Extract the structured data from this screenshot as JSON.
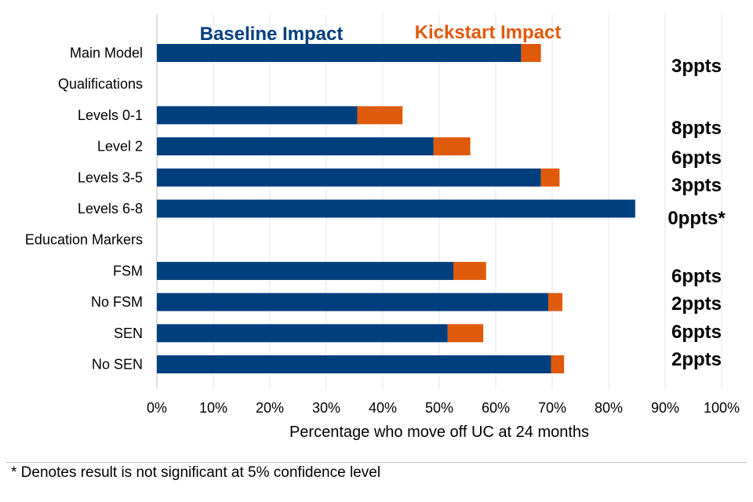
{
  "chart_data": {
    "type": "bar",
    "orientation": "horizontal",
    "stacked": true,
    "categories": [
      "Main Model",
      "Qualifications",
      "Levels 0-1",
      "Level 2",
      "Levels 3-5",
      "Levels 6-8",
      "Education Markers",
      "FSM",
      "No FSM",
      "SEN",
      "No SEN"
    ],
    "series": [
      {
        "name": "Baseline Impact",
        "color": "#003f7d",
        "values": [
          64.5,
          null,
          35.5,
          49,
          68,
          84.7,
          null,
          52.5,
          69.3,
          51.5,
          69.8
        ]
      },
      {
        "name": "Kickstart Impact",
        "color": "#e05a0c",
        "values": [
          3.5,
          null,
          8,
          6.5,
          3.3,
          0,
          null,
          5.8,
          2.5,
          6.3,
          2.3
        ]
      }
    ],
    "impact_labels": [
      "3ppts",
      "",
      "8ppts",
      "6ppts",
      "3ppts",
      "0ppts*",
      "",
      "6ppts",
      "2ppts",
      "6ppts",
      "2ppts"
    ],
    "xlim": [
      0,
      100
    ],
    "xticks": [
      "0%",
      "10%",
      "20%",
      "30%",
      "40%",
      "50%",
      "60%",
      "70%",
      "80%",
      "90%",
      "100%"
    ],
    "xlabel": "Percentage who move off UC at 24 months",
    "grid": "vertical",
    "legend_position": "top"
  },
  "footnote": "* Denotes result is not significant at 5% confidence level"
}
